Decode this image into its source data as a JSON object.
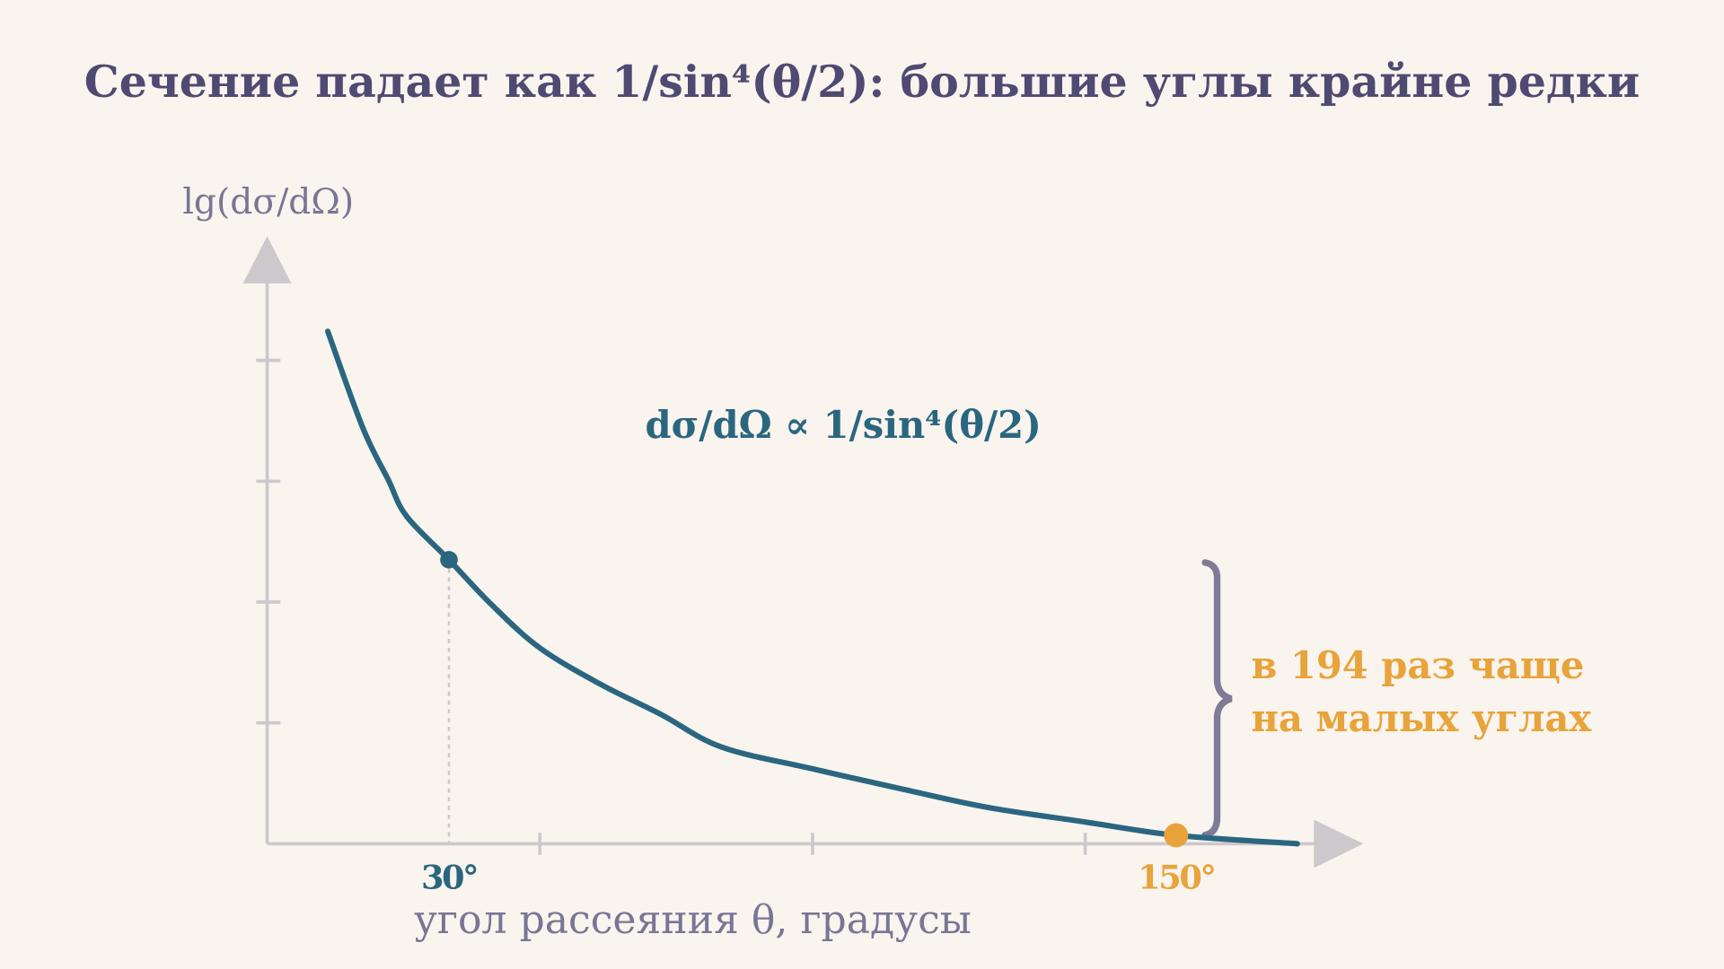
{
  "chart_data": {
    "type": "line",
    "title": "Сечение падает как 1/sin⁴(θ/2): большие углы крайне редки",
    "formula": "dσ/dΩ ∝ 1/sin⁴(θ/2)",
    "y_label": "lg(dσ/dΩ)",
    "x_label": "угол рассеяния θ, градусы",
    "xlim": [
      0,
      180
    ],
    "ylim": [
      0,
      5
    ],
    "xticks": [
      {
        "value": 45,
        "label": null
      },
      {
        "value": 90,
        "label": null
      },
      {
        "value": 135,
        "label": null
      }
    ],
    "yticks": [
      {
        "value": 1,
        "label": null
      },
      {
        "value": 2,
        "label": null
      },
      {
        "value": 3,
        "label": null
      },
      {
        "value": 4,
        "label": null
      }
    ],
    "series": [
      {
        "color": "#2b6680",
        "x": [
          10,
          15.8,
          20,
          23,
          30,
          37,
          45,
          55,
          65,
          75,
          90,
          105,
          119,
          135,
          150,
          170
        ],
        "values": [
          4.24,
          3.44,
          3.01,
          2.71,
          2.35,
          1.98,
          1.62,
          1.32,
          1.07,
          0.8,
          0.62,
          0.45,
          0.3,
          0.18,
          0.07,
          0
        ]
      }
    ],
    "highlights": [
      {
        "x": 30,
        "y": 2.35,
        "label": "30°",
        "color": "#2b6680"
      },
      {
        "x": 150,
        "y": 0.07,
        "label": "150°",
        "color": "#e8a33a"
      }
    ],
    "annotation": {
      "lines": [
        "в 194 раз чаще",
        "на малых углах"
      ],
      "color": "#e8a33a"
    }
  }
}
